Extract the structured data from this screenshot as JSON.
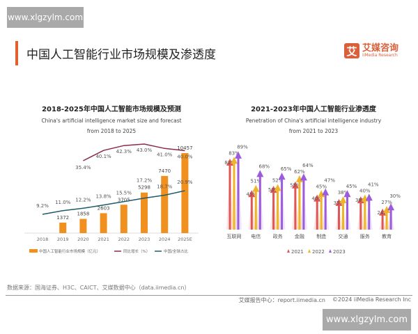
{
  "watermark": "www.xlgzylm.com",
  "page_title": "中国人工智能行业市场规模及渗透度",
  "logo": {
    "cn": "艾媒咨询",
    "en": "iiMedia Research",
    "mark": "艾"
  },
  "source": "数据来源：国海证券、H3C、CAICT、艾媒数据中心（data.iimedia.cn）",
  "footer": {
    "report": "艾媒报告中心：report.iimedia.cn",
    "copyright": "©2024 iiMedia Research Inc"
  },
  "chart_data": [
    {
      "type": "bar",
      "title": "2018-2025年中国人工智能市场规模及预测",
      "subtitle1": "China's artificial intelligence market size and forecast",
      "subtitle2": "from 2018 to 2025",
      "categories": [
        "2018",
        "2019",
        "2020",
        "2021",
        "2022",
        "2023",
        "2024",
        "2025E"
      ],
      "series": [
        {
          "name": "中国人工智能行业市场规模（亿元）",
          "type": "bar",
          "color": "#f0901e",
          "values": [
            null,
            1372,
            1858,
            2603,
            3705,
            5298,
            7470,
            10457
          ]
        },
        {
          "name": "同比增长（%）",
          "type": "line",
          "color": "#8b2a4a",
          "values": [
            null,
            null,
            35.4,
            40.1,
            42.3,
            43.0,
            41.0,
            40.0
          ]
        },
        {
          "name": "中国/全球占比",
          "type": "line",
          "color": "#1e5a6a",
          "values": [
            9.2,
            11.0,
            12.2,
            13.8,
            15.5,
            17.2,
            18.7,
            20.9
          ]
        }
      ],
      "legend": "bottom"
    },
    {
      "type": "bar",
      "title": "2021-2023年中国人工智能行业渗透度",
      "subtitle1": "Penetration of China's artificial intelligence industry",
      "subtitle2": "from 2021 to 2023",
      "categories": [
        "互联网",
        "电信",
        "政务",
        "金融",
        "制造",
        "交通",
        "服务",
        "教育"
      ],
      "series": [
        {
          "name": "2021",
          "color": "#e05555",
          "values": [
            81,
            45,
            50,
            55,
            40,
            35,
            38,
            24
          ]
        },
        {
          "name": "2022",
          "color": "#f0b429",
          "values": [
            83,
            51,
            52,
            62,
            45,
            38,
            40,
            27
          ]
        },
        {
          "name": "2023",
          "color": "#9b5bdc",
          "values": [
            89,
            68,
            65,
            64,
            47,
            45,
            41,
            30
          ]
        }
      ],
      "unit": "%",
      "legend": "bottom"
    }
  ]
}
